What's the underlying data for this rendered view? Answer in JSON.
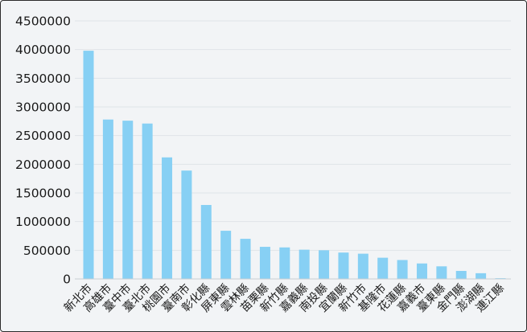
{
  "chart_data": {
    "type": "bar",
    "title": "",
    "xlabel": "",
    "ylabel": "",
    "categories": [
      "新北市",
      "高雄市",
      "臺中市",
      "臺北市",
      "桃園市",
      "臺南市",
      "彰化縣",
      "屏東縣",
      "雲林縣",
      "苗栗縣",
      "新竹縣",
      "嘉義縣",
      "南投縣",
      "宜蘭縣",
      "新竹市",
      "基隆市",
      "花蓮縣",
      "嘉義市",
      "臺東縣",
      "金門縣",
      "澎湖縣",
      "連江縣"
    ],
    "values": [
      3980000,
      2780000,
      2760000,
      2710000,
      2120000,
      1890000,
      1290000,
      840000,
      700000,
      560000,
      550000,
      510000,
      500000,
      460000,
      440000,
      370000,
      330000,
      270000,
      220000,
      140000,
      100000,
      13000
    ],
    "ylim": [
      0,
      4500000
    ],
    "yticks": [
      0,
      500000,
      1000000,
      1500000,
      2000000,
      2500000,
      3000000,
      3500000,
      4000000,
      4500000
    ],
    "ytick_labels": [
      "0",
      "500000",
      "1000000",
      "1500000",
      "2000000",
      "2500000",
      "3000000",
      "3500000",
      "4000000",
      "4500000"
    ],
    "grid": true,
    "legend": "none",
    "bar_color": "#87d0f4"
  }
}
